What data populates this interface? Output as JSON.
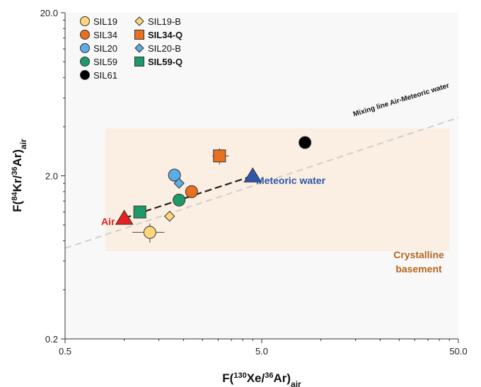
{
  "chart_data": {
    "type": "scatter",
    "x_scale": "log",
    "y_scale": "log",
    "xlim": [
      0.5,
      50.0
    ],
    "ylim": [
      0.2,
      20.0
    ],
    "x_ticks": [
      "0.5",
      "5.0",
      "50.0"
    ],
    "y_ticks": [
      "20.0",
      "2.0",
      "0.2"
    ],
    "xlabel": {
      "base": "F(",
      "sup1": "130",
      "mid": "Xe/",
      "sup2": "36",
      "post": "Ar)",
      "sub": "air"
    },
    "ylabel": {
      "base": "F(",
      "sup1": "84",
      "mid": "Kr/",
      "sup2": "36",
      "post": "Ar)",
      "sub": "air"
    },
    "grid": false,
    "legend_position": "top-left",
    "legend": [
      {
        "label": "SIL19",
        "marker": "circle",
        "color": "#FDD87A",
        "bold": false
      },
      {
        "label": "SIL19-B",
        "marker": "diamond",
        "color": "#FDD87A",
        "bold": false
      },
      {
        "label": "SIL34",
        "marker": "circle",
        "color": "#E8701E",
        "bold": false
      },
      {
        "label": "SIL34-Q",
        "marker": "square",
        "color": "#E8701E",
        "bold": true
      },
      {
        "label": "SIL20",
        "marker": "circle",
        "color": "#5AAEE3",
        "bold": false
      },
      {
        "label": "SIL20-B",
        "marker": "diamond",
        "color": "#5AAEE3",
        "bold": false
      },
      {
        "label": "SIL59",
        "marker": "circle",
        "color": "#1E9A6A",
        "bold": false
      },
      {
        "label": "SIL59-Q",
        "marker": "square",
        "color": "#1E9A6A",
        "bold": true
      },
      {
        "label": "SIL61",
        "marker": "circle",
        "color": "#000000",
        "bold": false
      }
    ],
    "series": [
      {
        "name": "SIL19",
        "marker": "circle",
        "color": "#FDD87A",
        "x": 1.35,
        "y": 0.9,
        "xerr": [
          1.1,
          1.6
        ],
        "yerr": [
          0.78,
          1.02
        ]
      },
      {
        "name": "SIL19-B",
        "marker": "diamond",
        "color": "#FDD87A",
        "x": 1.7,
        "y": 1.13
      },
      {
        "name": "SIL34",
        "marker": "circle",
        "color": "#E8701E",
        "x": 2.2,
        "y": 1.6
      },
      {
        "name": "SIL34-Q",
        "marker": "square",
        "color": "#E8701E",
        "x": 3.05,
        "y": 2.65,
        "xerr": [
          2.8,
          3.4
        ],
        "yerr": [
          2.35,
          2.95
        ]
      },
      {
        "name": "SIL20",
        "marker": "circle",
        "color": "#5AAEE3",
        "x": 1.8,
        "y": 2.02
      },
      {
        "name": "SIL20-B",
        "marker": "diamond",
        "color": "#5AAEE3",
        "x": 1.9,
        "y": 1.8
      },
      {
        "name": "SIL59",
        "marker": "circle",
        "color": "#1E9A6A",
        "x": 1.9,
        "y": 1.42
      },
      {
        "name": "SIL59-Q",
        "marker": "square",
        "color": "#1E9A6A",
        "x": 1.2,
        "y": 1.2
      },
      {
        "name": "SIL61",
        "marker": "circle",
        "color": "#000000",
        "x": 8.3,
        "y": 3.2
      }
    ],
    "endmembers": [
      {
        "label": "Air",
        "marker": "triangle",
        "color": "#E52020",
        "x": 1.0,
        "y": 1.1
      },
      {
        "label": "Meteoric water",
        "marker": "triangle",
        "color": "#2E55A8",
        "x": 4.5,
        "y": 2.0
      }
    ],
    "lines": [
      {
        "label": "Mixing line Air-Meteoric water",
        "style": "dashed",
        "color": "#D0D0D0",
        "from": [
          0.5,
          0.72
        ],
        "to": [
          50.0,
          4.55
        ]
      },
      {
        "label": "",
        "style": "dashed",
        "color": "#222222",
        "from": [
          1.0,
          1.1
        ],
        "to": [
          4.5,
          2.0
        ]
      }
    ],
    "regions": [
      {
        "label_line1": "Crystalline",
        "label_line2": "basement",
        "color": "#FBEEE2",
        "label_color": "#B5651D",
        "xlim": [
          0.8,
          45.0
        ],
        "ylim": [
          0.69,
          3.9
        ]
      }
    ]
  }
}
